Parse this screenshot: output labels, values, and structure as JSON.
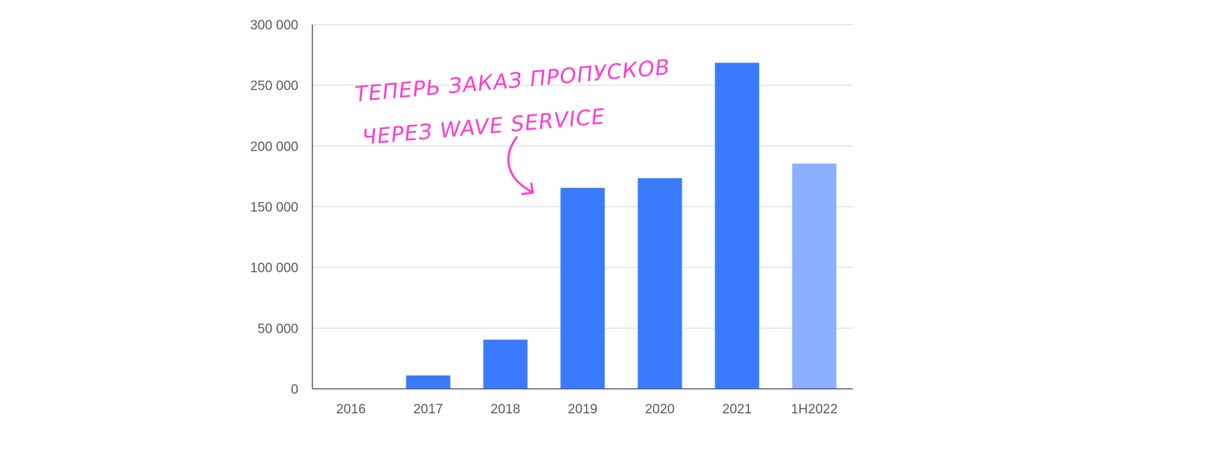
{
  "chart_data": {
    "type": "bar",
    "title": "",
    "xlabel": "",
    "ylabel": "",
    "categories": [
      "2016",
      "2017",
      "2018",
      "2019",
      "2020",
      "2021",
      "1H2022"
    ],
    "values": [
      0,
      11000,
      40500,
      165500,
      173500,
      268500,
      185500
    ],
    "ylim": [
      0,
      300000
    ],
    "yticks": [
      0,
      50000,
      100000,
      150000,
      200000,
      250000,
      300000
    ],
    "ytick_labels": [
      "0",
      "50 000",
      "100 000",
      "150 000",
      "200 000",
      "250 000",
      "300 000"
    ],
    "grid": true,
    "legend": "none",
    "colors": {
      "bar": "#3a7aff",
      "partial_year_bar": "#8ab0ff",
      "annotation": "#ff3bd0",
      "axis": "#4a5680",
      "grid": "#d9d9d9"
    },
    "annotation": {
      "lines": [
        "ТЕПЕРЬ ЗАКАЗ ПРОПУСКОВ",
        "ЧЕРЕЗ WAVE SERVICE"
      ],
      "points_to": "2019"
    }
  }
}
